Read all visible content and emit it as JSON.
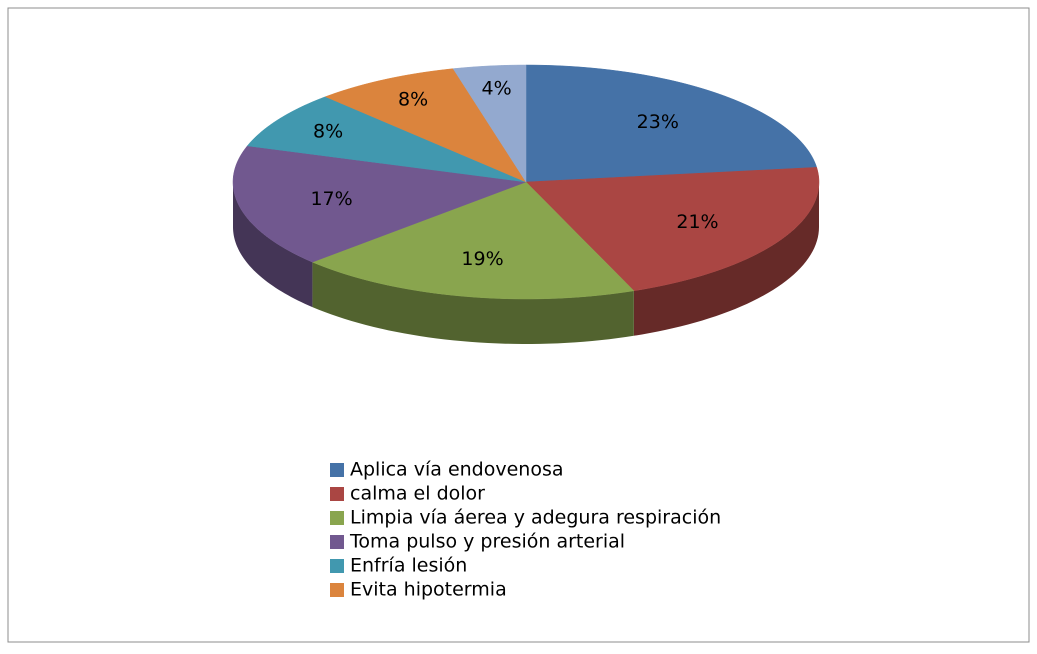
{
  "chart_data": {
    "type": "pie",
    "categories": [
      "Aplica vía endovenosa",
      "calma el dolor",
      "Limpia vía áerea y adegura respiración",
      "Toma pulso y presión arterial",
      "Enfría lesión",
      "Evita hipotermia",
      null
    ],
    "values": [
      23,
      21,
      19,
      17,
      8,
      8,
      4
    ],
    "value_labels": [
      "23%",
      "21%",
      "19%",
      "17%",
      "8%",
      "8%",
      "4%"
    ],
    "colors": [
      "#4572a7",
      "#aa4643",
      "#89a54e",
      "#71588f",
      "#4198af",
      "#db843d",
      "#93a9cf"
    ],
    "legend": "bottom"
  }
}
